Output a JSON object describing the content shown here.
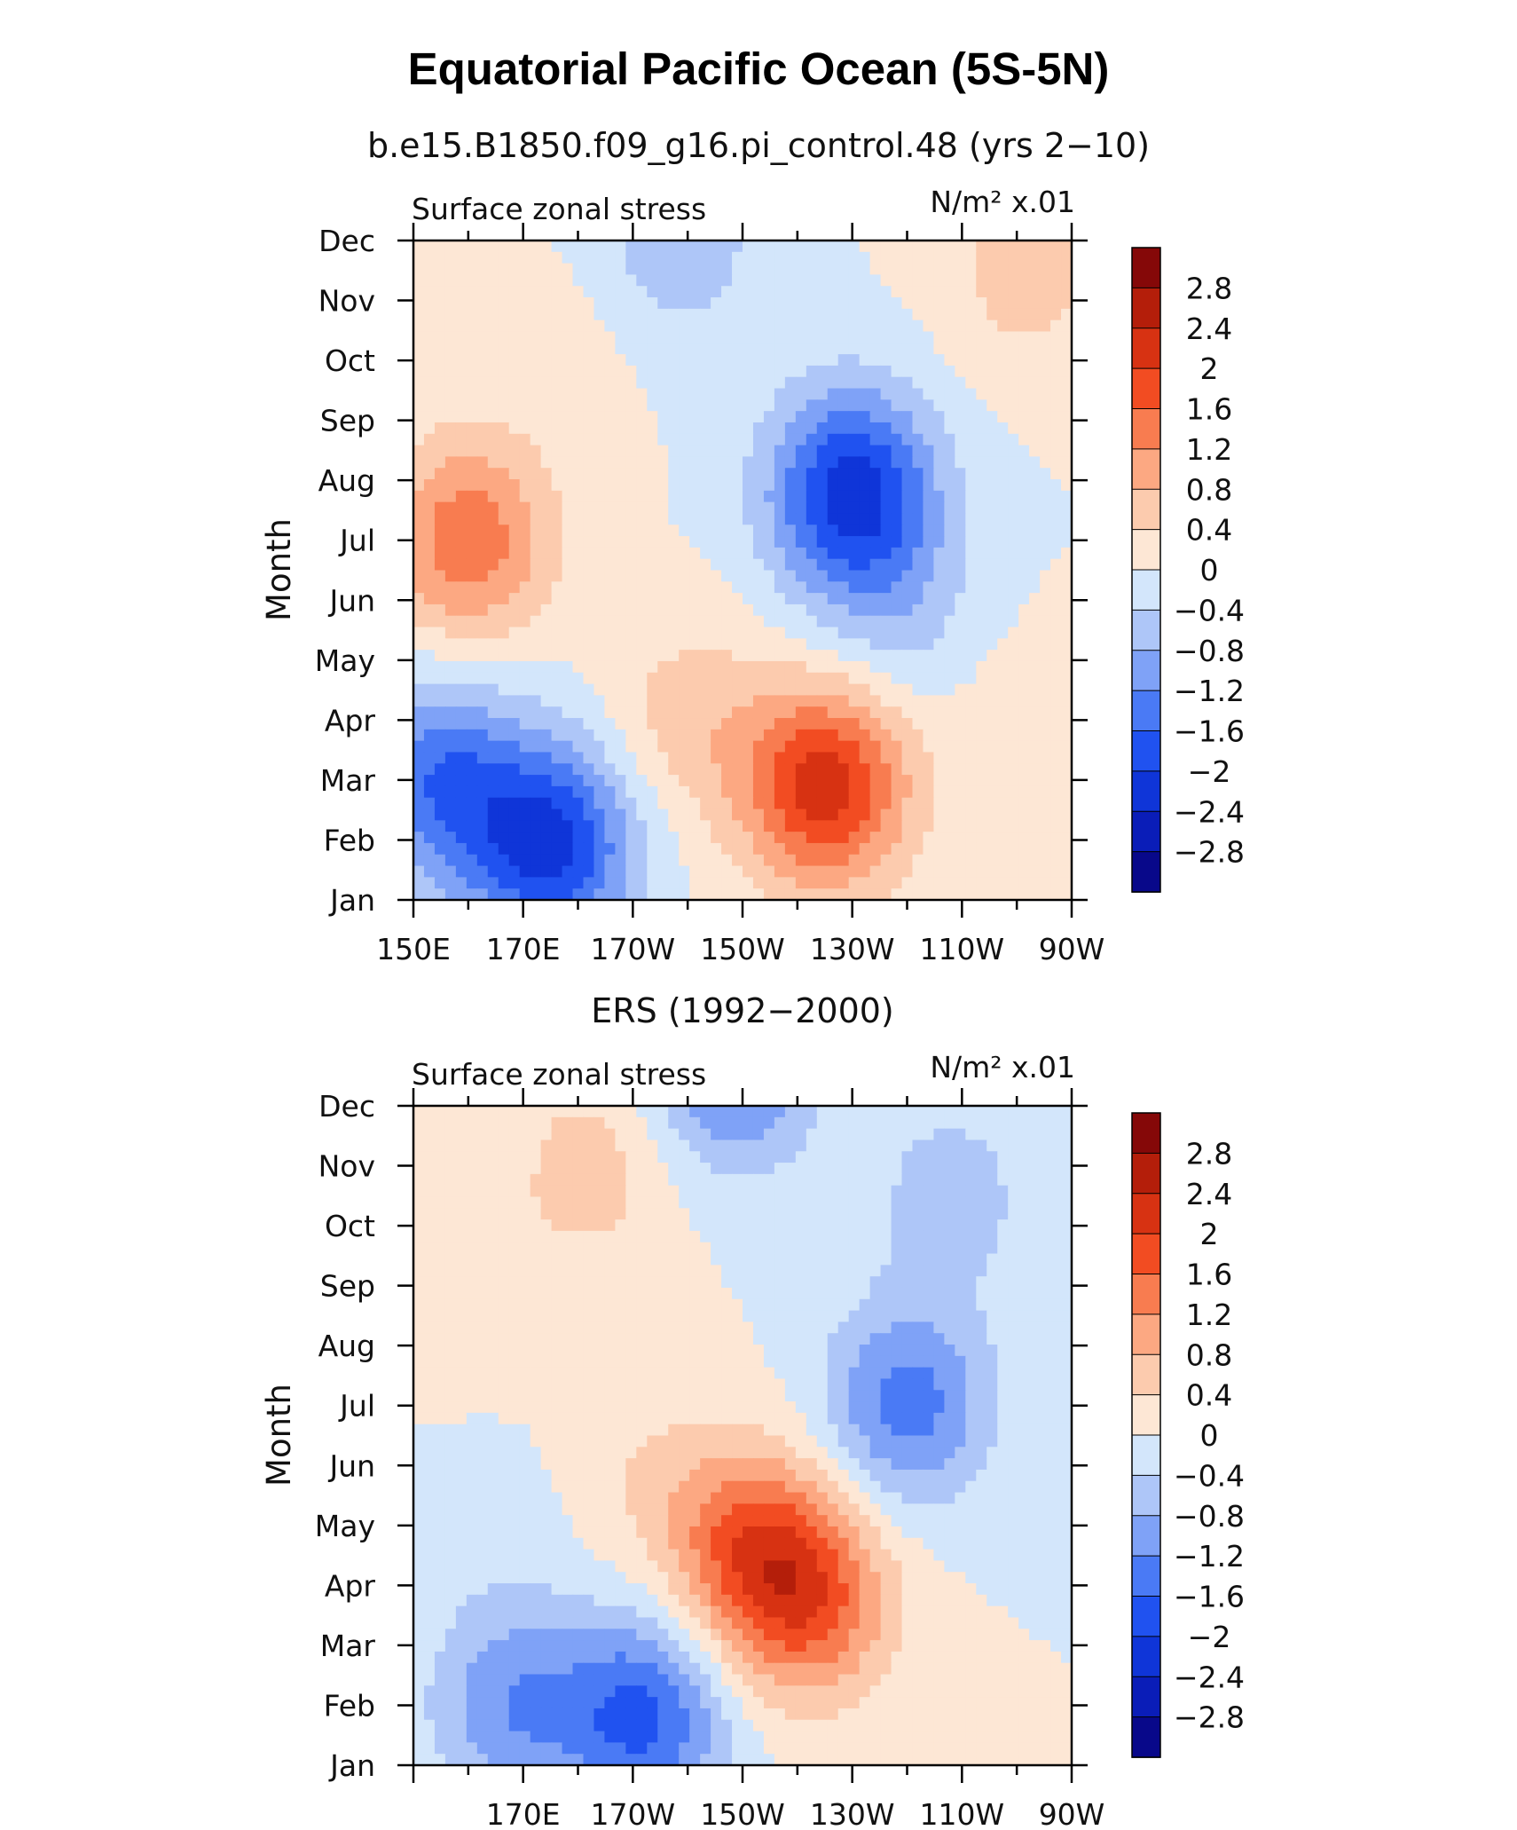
{
  "chart_data": {
    "type": "heatmap",
    "title": "Equatorial Pacific Ocean (5S-5N)",
    "panels": [
      {
        "subtitle": "b.e15.B1850.f09_g16.pi_control.48 (yrs 2−10)",
        "left_label": "Surface zonal stress",
        "units": "N/m² x.01",
        "ylabel": "Month",
        "x_ticks": [
          "150E",
          "170E",
          "170W",
          "150W",
          "130W",
          "110W",
          "90W"
        ],
        "y_ticks": [
          "Jan",
          "Feb",
          "Mar",
          "Apr",
          "May",
          "Jun",
          "Jul",
          "Aug",
          "Sep",
          "Oct",
          "Nov",
          "Dec"
        ],
        "x_range_deg_east": [
          150,
          270
        ],
        "features": [
          {
            "lon": 175,
            "month": 0.9,
            "value": -2.1
          },
          {
            "lon": 160,
            "month": 6.0,
            "value": 1.5
          },
          {
            "lon": 225,
            "month": 1.9,
            "value": 2.2
          },
          {
            "lon": 230,
            "month": 6.8,
            "value": -2.2
          },
          {
            "lon": 262,
            "month": 10.5,
            "value": 0.6
          },
          {
            "lon": 198,
            "month": 11.0,
            "value": -0.7
          },
          {
            "lon": 238,
            "month": 4.8,
            "value": -0.5
          },
          {
            "lon": 178,
            "month": 9.3,
            "value": 0.2
          },
          {
            "lon": 155,
            "month": 2.0,
            "value": -1.5
          },
          {
            "lon": 200,
            "month": 3.0,
            "value": 0.6
          },
          {
            "lon": 264,
            "month": 2.5,
            "value": 0.4
          }
        ]
      },
      {
        "subtitle": "ERS (1992−2000)",
        "left_label": "Surface zonal stress",
        "units": "N/m² x.01",
        "ylabel": "Month",
        "x_ticks": [
          "170E",
          "170W",
          "150W",
          "130W",
          "110W",
          "90W"
        ],
        "y_ticks": [
          "Jan",
          "Feb",
          "Mar",
          "Apr",
          "May",
          "Jun",
          "Jul",
          "Aug",
          "Sep",
          "Oct",
          "Nov",
          "Dec"
        ],
        "x_range_deg_east": [
          150,
          270
        ],
        "features": [
          {
            "lon": 192,
            "month": 0.8,
            "value": -1.7
          },
          {
            "lon": 168,
            "month": 1.0,
            "value": -1.1
          },
          {
            "lon": 222,
            "month": 2.8,
            "value": 1.7
          },
          {
            "lon": 210,
            "month": 3.7,
            "value": 1.4
          },
          {
            "lon": 240,
            "month": 6.0,
            "value": -1.4
          },
          {
            "lon": 208,
            "month": 11.7,
            "value": -1.5
          },
          {
            "lon": 183,
            "month": 10.0,
            "value": 0.6
          },
          {
            "lon": 248,
            "month": 9.5,
            "value": -0.6
          },
          {
            "lon": 160,
            "month": 8.0,
            "value": 0.3
          },
          {
            "lon": 165,
            "month": 4.0,
            "value": -0.2
          },
          {
            "lon": 190,
            "month": 5.0,
            "value": 0.3
          }
        ]
      }
    ],
    "colorbar": {
      "labels": [
        "2.8",
        "2.4",
        "2",
        "1.6",
        "1.2",
        "0.8",
        "0.4",
        "0",
        "−0.4",
        "−0.8",
        "−1.2",
        "−1.6",
        "−2",
        "−2.4",
        "−2.8"
      ],
      "levels": [
        -2.8,
        -2.4,
        -2.0,
        -1.6,
        -1.2,
        -0.8,
        -0.4,
        0,
        0.4,
        0.8,
        1.2,
        1.6,
        2.0,
        2.4,
        2.8
      ],
      "colors": [
        "#08088a",
        "#0a1db8",
        "#0f35d8",
        "#2052f0",
        "#4a7af5",
        "#7fa2f7",
        "#aec6f8",
        "#d3e6fb",
        "#fde7d5",
        "#fccbae",
        "#fca882",
        "#f87c50",
        "#f24c22",
        "#d73212",
        "#b41e0a",
        "#850808"
      ]
    }
  }
}
